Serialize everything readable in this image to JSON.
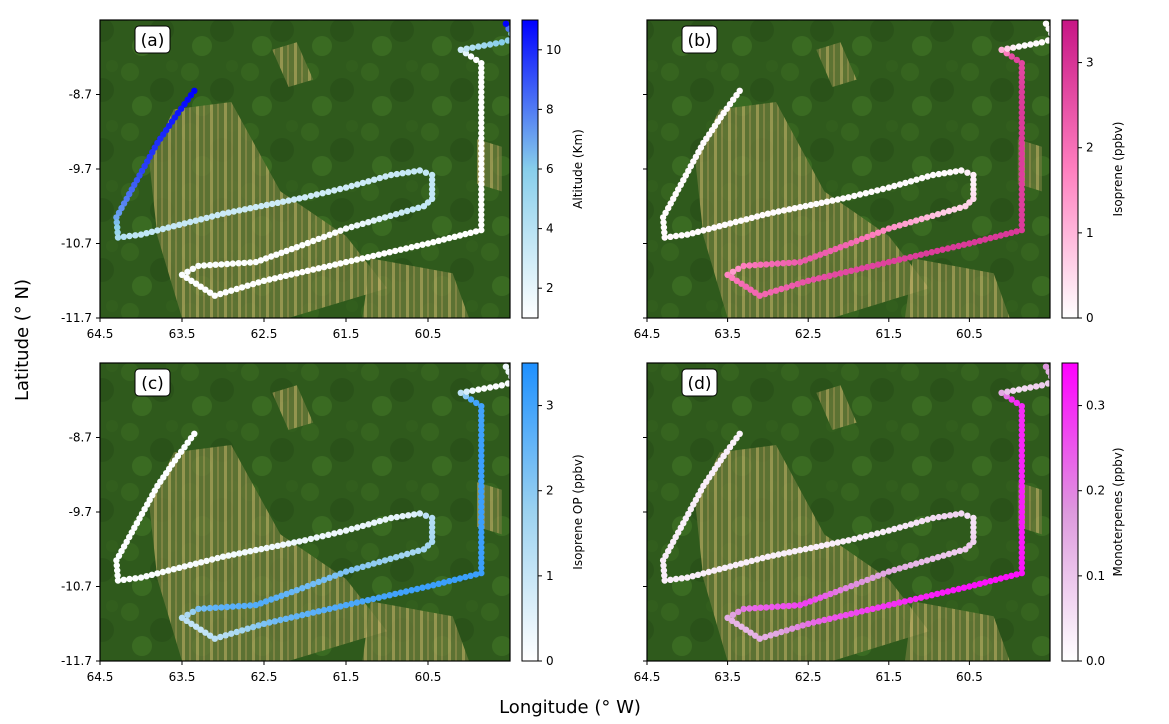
{
  "figure": {
    "xlabel": "Longitude (° W)",
    "ylabel": "Latitude (° N)"
  },
  "chart_data": [
    {
      "type": "scatter",
      "panel_label": "(a)",
      "series": [
        {
          "name": "",
          "variable": "Altitude"
        }
      ],
      "colorbar": {
        "label": "Altitude (Km)",
        "ticks": [
          "2",
          "4",
          "6",
          "8",
          "10"
        ],
        "range": [
          1,
          11
        ],
        "color_low": "#ffffff",
        "color_mid": "#87ceeb",
        "color_high": "#0000ff"
      },
      "x_ticks": [
        "64.5",
        "63.5",
        "62.5",
        "61.5",
        "60.5"
      ],
      "y_ticks": [
        "-8.7",
        "-9.7",
        "-10.7",
        "-11.7"
      ],
      "xlim": [
        64.5,
        59.5
      ],
      "ylim": [
        -11.7,
        -7.7
      ]
    },
    {
      "type": "scatter",
      "panel_label": "(b)",
      "series": [
        {
          "name": "",
          "variable": "Isoprene"
        }
      ],
      "colorbar": {
        "label": "Isoprene (ppbv)",
        "ticks": [
          "0",
          "1",
          "2",
          "3"
        ],
        "range": [
          0,
          3.5
        ],
        "color_low": "#ffffff",
        "color_mid": "#ff7fbf",
        "color_high": "#c71585"
      },
      "x_ticks": [
        "64.5",
        "63.5",
        "62.5",
        "61.5",
        "60.5"
      ],
      "y_ticks": [],
      "xlim": [
        64.5,
        59.5
      ],
      "ylim": [
        -11.7,
        -7.7
      ]
    },
    {
      "type": "scatter",
      "panel_label": "(c)",
      "series": [
        {
          "name": "",
          "variable": "Isoprene OP"
        }
      ],
      "colorbar": {
        "label": "Isoprene OP (ppbv)",
        "ticks": [
          "0",
          "1",
          "2",
          "3"
        ],
        "range": [
          0,
          3.5
        ],
        "color_low": "#ffffff",
        "color_mid": "#9cd2f0",
        "color_high": "#1e90ff"
      },
      "x_ticks": [
        "64.5",
        "63.5",
        "62.5",
        "61.5",
        "60.5"
      ],
      "y_ticks": [
        "-8.7",
        "-9.7",
        "-10.7",
        "-11.7"
      ],
      "xlim": [
        64.5,
        59.5
      ],
      "ylim": [
        -11.7,
        -7.7
      ]
    },
    {
      "type": "scatter",
      "panel_label": "(d)",
      "series": [
        {
          "name": "",
          "variable": "Monoterpenes"
        }
      ],
      "colorbar": {
        "label": "Monoterpenes (ppbv)",
        "ticks": [
          "0.0",
          "0.1",
          "0.2",
          "0.3"
        ],
        "range": [
          0,
          0.35
        ],
        "color_low": "#ffffff",
        "color_mid": "#dd99dd",
        "color_high": "#ff00ff"
      },
      "x_ticks": [
        "64.5",
        "63.5",
        "62.5",
        "61.5",
        "60.5"
      ],
      "y_ticks": [],
      "xlim": [
        64.5,
        59.5
      ],
      "ylim": [
        -11.7,
        -7.7
      ]
    }
  ],
  "flight_track": {
    "note_units": "longitude (°W), latitude (°N)",
    "upper_segment": [
      [
        63.35,
        -8.65
      ],
      [
        63.55,
        -8.95
      ],
      [
        63.8,
        -9.35
      ],
      [
        64.05,
        -9.85
      ],
      [
        64.3,
        -10.35
      ],
      [
        64.28,
        -10.62
      ],
      [
        64.0,
        -10.58
      ],
      [
        63.0,
        -10.3
      ],
      [
        62.0,
        -10.08
      ],
      [
        61.5,
        -9.95
      ]
    ],
    "loop_segment": [
      [
        61.5,
        -9.95
      ],
      [
        60.95,
        -9.78
      ],
      [
        60.6,
        -9.72
      ],
      [
        60.45,
        -9.78
      ],
      [
        60.45,
        -10.1
      ],
      [
        60.55,
        -10.2
      ]
    ],
    "lower_segment": [
      [
        60.55,
        -10.2
      ],
      [
        61.5,
        -10.5
      ],
      [
        62.1,
        -10.75
      ],
      [
        62.6,
        -10.95
      ],
      [
        63.3,
        -11.0
      ],
      [
        63.5,
        -11.12
      ],
      [
        63.1,
        -11.4
      ],
      [
        62.5,
        -11.2
      ],
      [
        61.5,
        -10.95
      ],
      [
        60.5,
        -10.7
      ],
      [
        59.85,
        -10.52
      ]
    ],
    "return_segment": [
      [
        59.85,
        -10.52
      ],
      [
        59.85,
        -9.7
      ],
      [
        59.85,
        -8.6
      ],
      [
        59.85,
        -8.28
      ]
    ],
    "top_cluster": [
      [
        59.85,
        -8.28
      ],
      [
        60.1,
        -8.1
      ],
      [
        59.6,
        -8.0
      ],
      [
        59.45,
        -7.95
      ],
      [
        59.55,
        -7.75
      ]
    ]
  },
  "values": {
    "altitude": [
      11,
      10.5,
      10,
      9.5,
      8,
      6,
      4,
      3.5,
      3.2,
      3.0,
      3.0,
      3.2,
      3.4,
      3.5,
      3.5,
      3.5,
      3.5,
      1.2,
      1.1,
      1.1,
      1.2,
      1.3,
      1.1,
      1.1,
      1.0,
      1.0,
      1.0,
      1.0,
      1.0,
      1.0,
      1.0,
      1.0,
      4.5,
      6.5,
      3.5,
      11.0
    ],
    "isoprene": [
      0.05,
      0.05,
      0.05,
      0.05,
      0.05,
      0.05,
      0.05,
      0.05,
      0.05,
      0.05,
      0.05,
      0.05,
      0.05,
      0.2,
      0.2,
      0.6,
      0.6,
      1.6,
      2.2,
      2.4,
      2.0,
      1.3,
      2.1,
      2.2,
      2.6,
      2.8,
      2.9,
      2.9,
      2.8,
      2.9,
      2.7,
      2.7,
      0.05,
      0.05,
      0.05,
      0.05
    ],
    "isoprene_op": [
      0.05,
      0.05,
      0.05,
      0.05,
      0.05,
      0.05,
      0.05,
      0.1,
      0.2,
      0.3,
      0.3,
      0.4,
      0.5,
      1.2,
      1.4,
      1.6,
      1.6,
      2.2,
      2.4,
      2.8,
      2.6,
      1.5,
      1.0,
      1.4,
      2.5,
      2.9,
      3.1,
      3.1,
      3.1,
      3.1,
      3.0,
      3.0,
      0.05,
      0.1,
      0.2,
      0.3
    ],
    "monoterpenes": [
      0.02,
      0.03,
      0.03,
      0.03,
      0.03,
      0.03,
      0.03,
      0.03,
      0.03,
      0.03,
      0.03,
      0.05,
      0.08,
      0.05,
      0.05,
      0.09,
      0.09,
      0.15,
      0.2,
      0.28,
      0.24,
      0.16,
      0.12,
      0.15,
      0.25,
      0.3,
      0.33,
      0.33,
      0.32,
      0.31,
      0.3,
      0.3,
      0.05,
      0.1,
      0.05,
      0.18
    ]
  }
}
